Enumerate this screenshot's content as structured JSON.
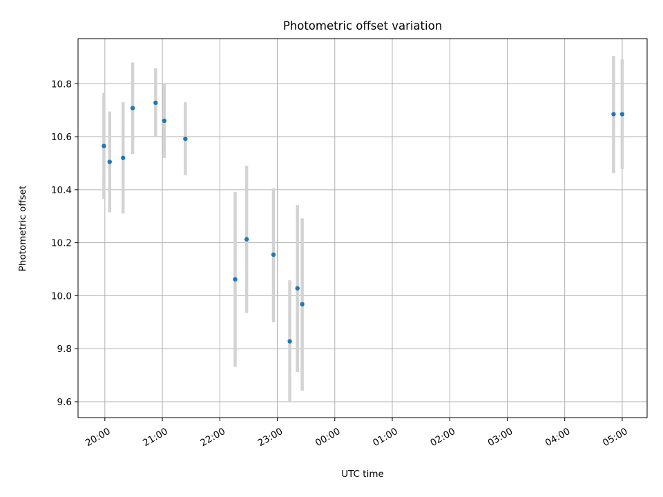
{
  "chart_data": {
    "type": "scatter",
    "title": "Photometric offset variation",
    "xlabel": "UTC time",
    "ylabel": "Photometric offset",
    "x_axis": "time",
    "xlim": [
      "19:32",
      "05:26"
    ],
    "ylim": [
      9.54,
      10.97
    ],
    "x_ticks": [
      "20:00",
      "21:00",
      "22:00",
      "23:00",
      "00:00",
      "01:00",
      "02:00",
      "03:00",
      "04:00",
      "05:00"
    ],
    "y_ticks": [
      9.6,
      9.8,
      10.0,
      10.2,
      10.4,
      10.6,
      10.8
    ],
    "y_tick_labels": [
      "9.6",
      "9.8",
      "10.0",
      "10.2",
      "10.4",
      "10.6",
      "10.8"
    ],
    "grid": true,
    "colors": {
      "point": "#1f77b4",
      "errorbar": "#d3d3d3",
      "grid": "#b0b0b0"
    },
    "points": [
      {
        "x": "19:59",
        "y": 10.565,
        "err_low": 10.365,
        "err_high": 10.765
      },
      {
        "x": "20:05",
        "y": 10.505,
        "err_low": 10.315,
        "err_high": 10.695
      },
      {
        "x": "20:19",
        "y": 10.52,
        "err_low": 10.31,
        "err_high": 10.73
      },
      {
        "x": "20:29",
        "y": 10.708,
        "err_low": 10.535,
        "err_high": 10.88
      },
      {
        "x": "20:53",
        "y": 10.728,
        "err_low": 10.6,
        "err_high": 10.858
      },
      {
        "x": "21:02",
        "y": 10.66,
        "err_low": 10.52,
        "err_high": 10.8
      },
      {
        "x": "21:24",
        "y": 10.592,
        "err_low": 10.455,
        "err_high": 10.73
      },
      {
        "x": "22:16",
        "y": 10.062,
        "err_low": 9.732,
        "err_high": 10.392
      },
      {
        "x": "22:28",
        "y": 10.213,
        "err_low": 9.935,
        "err_high": 10.49
      },
      {
        "x": "22:56",
        "y": 10.155,
        "err_low": 9.9,
        "err_high": 10.405
      },
      {
        "x": "23:13",
        "y": 9.828,
        "err_low": 9.6,
        "err_high": 10.058
      },
      {
        "x": "23:21",
        "y": 10.028,
        "err_low": 9.712,
        "err_high": 10.342
      },
      {
        "x": "23:26",
        "y": 9.968,
        "err_low": 9.642,
        "err_high": 10.292
      },
      {
        "x": "04:51",
        "y": 10.685,
        "err_low": 10.462,
        "err_high": 10.905
      },
      {
        "x": "05:00",
        "y": 10.685,
        "err_low": 10.478,
        "err_high": 10.892
      }
    ]
  }
}
